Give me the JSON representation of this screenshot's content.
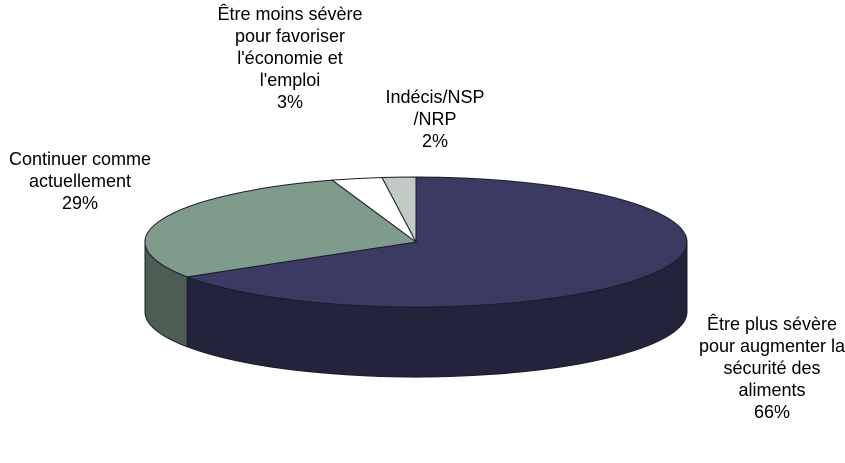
{
  "chart_data": {
    "type": "pie3d",
    "categories": [
      "Être plus sévère pour augmenter la sécurité des aliments",
      "Continuer comme actuellement",
      "Être moins sévère pour favoriser l'économie et l'emploi",
      "Indécis/NSP /NRP"
    ],
    "values": [
      66,
      29,
      3,
      2
    ],
    "value_labels": [
      "66%",
      "29%",
      "3%",
      "2%"
    ],
    "colors": [
      "#3b3a62",
      "#7f9b8b",
      "#ffffff",
      "#c3cbc5"
    ]
  }
}
